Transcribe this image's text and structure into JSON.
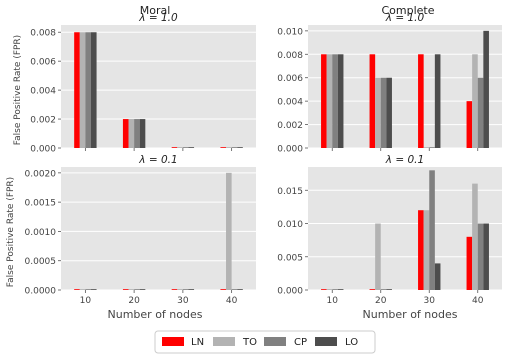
{
  "figure": {
    "column_titles": [
      "Moral",
      "Complete"
    ],
    "ylabel": "False Positive Rate (FPR)",
    "xlabel": "Number of nodes",
    "legend": [
      {
        "name": "LN",
        "color": "#ff0000"
      },
      {
        "name": "TO",
        "color": "#b3b3b3"
      },
      {
        "name": "CP",
        "color": "#808080"
      },
      {
        "name": "LO",
        "color": "#4d4d4d"
      }
    ]
  },
  "chart_data": [
    {
      "type": "bar",
      "column_title": "Moral",
      "panel_title": "λ = 1.0",
      "categories": [
        "10",
        "20",
        "30",
        "40"
      ],
      "ylabel": "False Positive Rate (FPR)",
      "xlabel": "",
      "ylim": [
        0,
        0.0085
      ],
      "yticks": [
        "0.000",
        "0.002",
        "0.004",
        "0.006",
        "0.008"
      ],
      "series": [
        {
          "name": "LN",
          "values": [
            0.008,
            0.002,
            0,
            0
          ]
        },
        {
          "name": "TO",
          "values": [
            0.008,
            0.002,
            0,
            0
          ]
        },
        {
          "name": "CP",
          "values": [
            0.008,
            0.002,
            0,
            0
          ]
        },
        {
          "name": "LO",
          "values": [
            0.008,
            0.002,
            0,
            0
          ]
        }
      ],
      "grid": true
    },
    {
      "type": "bar",
      "column_title": "Complete",
      "panel_title": "λ = 1.0",
      "categories": [
        "10",
        "20",
        "30",
        "40"
      ],
      "ylabel": "",
      "xlabel": "",
      "ylim": [
        0,
        0.0105
      ],
      "yticks": [
        "0.000",
        "0.002",
        "0.004",
        "0.006",
        "0.008",
        "0.010"
      ],
      "series": [
        {
          "name": "LN",
          "values": [
            0.008,
            0.008,
            0.008,
            0.004
          ]
        },
        {
          "name": "TO",
          "values": [
            0.008,
            0.006,
            0,
            0.008
          ]
        },
        {
          "name": "CP",
          "values": [
            0.008,
            0.006,
            0,
            0.006
          ]
        },
        {
          "name": "LO",
          "values": [
            0.008,
            0.006,
            0.008,
            0.01
          ]
        }
      ],
      "grid": true
    },
    {
      "type": "bar",
      "column_title": "Moral",
      "panel_title": "λ = 0.1",
      "categories": [
        "10",
        "20",
        "30",
        "40"
      ],
      "ylabel": "False Positive Rate (FPR)",
      "xlabel": "Number of nodes",
      "ylim": [
        0,
        0.0021
      ],
      "yticks": [
        "0.0000",
        "0.0005",
        "0.0010",
        "0.0015",
        "0.0020"
      ],
      "series": [
        {
          "name": "LN",
          "values": [
            0,
            0,
            0,
            0
          ]
        },
        {
          "name": "TO",
          "values": [
            0,
            0,
            0,
            0.002
          ]
        },
        {
          "name": "CP",
          "values": [
            0,
            0,
            0,
            0
          ]
        },
        {
          "name": "LO",
          "values": [
            0,
            0,
            0,
            0
          ]
        }
      ],
      "grid": true
    },
    {
      "type": "bar",
      "column_title": "Complete",
      "panel_title": "λ = 0.1",
      "categories": [
        "10",
        "20",
        "30",
        "40"
      ],
      "ylabel": "",
      "xlabel": "Number of nodes",
      "ylim": [
        0,
        0.0185
      ],
      "yticks": [
        "0.000",
        "0.005",
        "0.010",
        "0.015"
      ],
      "series": [
        {
          "name": "LN",
          "values": [
            0,
            0,
            0.012,
            0.008
          ]
        },
        {
          "name": "TO",
          "values": [
            0,
            0.01,
            0.012,
            0.016
          ]
        },
        {
          "name": "CP",
          "values": [
            0,
            0,
            0.018,
            0.01
          ]
        },
        {
          "name": "LO",
          "values": [
            0,
            0,
            0.004,
            0.01
          ]
        }
      ],
      "grid": true
    }
  ]
}
